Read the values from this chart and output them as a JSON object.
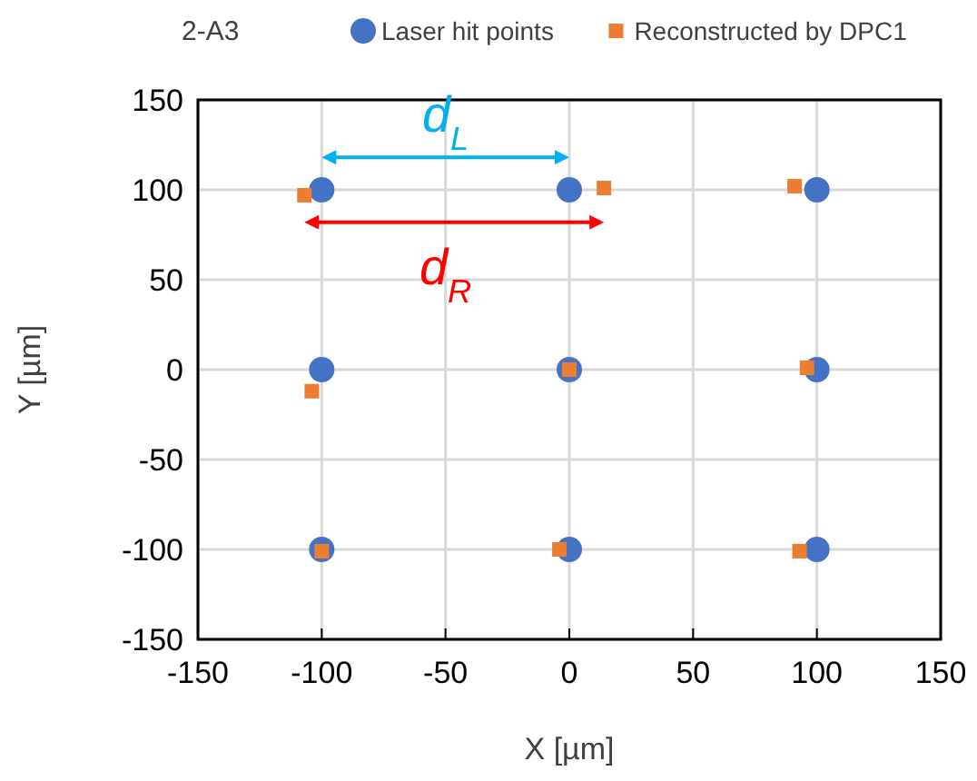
{
  "chart_data": {
    "type": "scatter",
    "title": "2-A3",
    "xlabel": "X [µm]",
    "ylabel": "Y [µm]",
    "xlim": [
      -150,
      150
    ],
    "ylim": [
      -150,
      150
    ],
    "xticks": [
      -150,
      -100,
      -50,
      0,
      50,
      100,
      150
    ],
    "yticks": [
      -150,
      -100,
      -50,
      0,
      50,
      100,
      150
    ],
    "grid": true,
    "legend": "top",
    "series": [
      {
        "name": "Laser hit points",
        "color": "#4472c4",
        "marker": "circle",
        "x": [
          -100,
          0,
          100,
          -100,
          0,
          100,
          -100,
          0,
          100
        ],
        "values": [
          100,
          100,
          100,
          0,
          0,
          0,
          -100,
          -100,
          -100
        ]
      },
      {
        "name": "Reconstructed by DPC1",
        "color": "#ed7d31",
        "marker": "square",
        "x": [
          -107,
          14,
          91,
          -104,
          0,
          96,
          -100,
          -4,
          93
        ],
        "values": [
          97,
          101,
          102,
          -12,
          0,
          1,
          -101,
          -100,
          -101
        ]
      }
    ],
    "annotations": [
      "d$_{L}$",
      "d$_{R}$"
    ]
  }
}
